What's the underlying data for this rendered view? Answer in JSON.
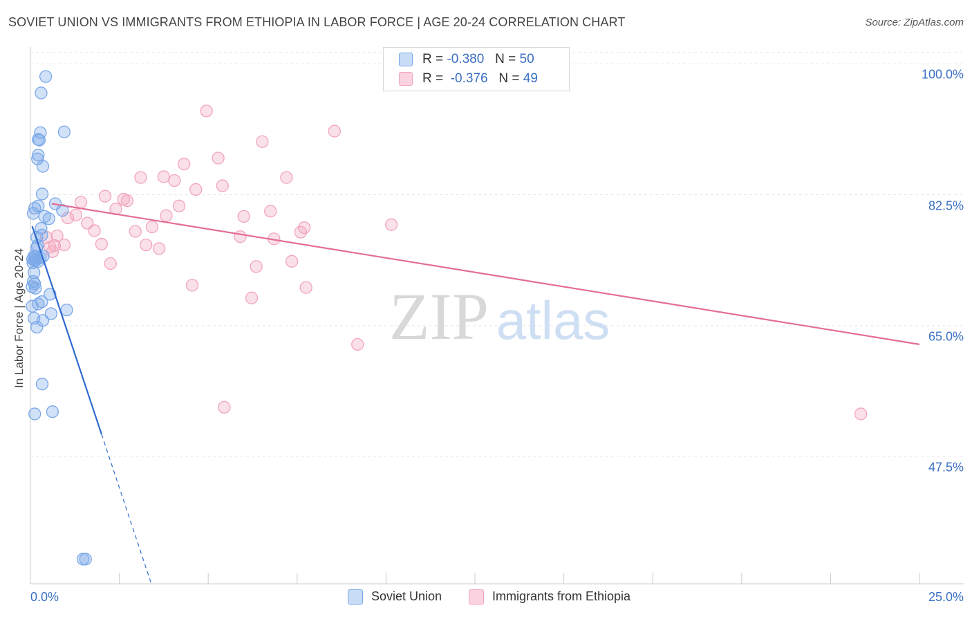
{
  "title": "SOVIET UNION VS IMMIGRANTS FROM ETHIOPIA IN LABOR FORCE | AGE 20-24 CORRELATION CHART",
  "source": "Source: ZipAtlas.com",
  "watermark": {
    "zip": "ZIP",
    "atlas": "atlas"
  },
  "legend": {
    "r_label": "R =",
    "n_label": "N =",
    "rows": [
      {
        "name": "Soviet Union",
        "r": "-0.380",
        "n": "50",
        "color": "#7aa8e8"
      },
      {
        "name": "Immigrants from Ethiopia",
        "r": "-0.376",
        "n": "49",
        "color": "#f2a5bd"
      }
    ]
  },
  "chart_data": {
    "type": "scatter",
    "title": "SOVIET UNION VS IMMIGRANTS FROM ETHIOPIA IN LABOR FORCE | AGE 20-24 CORRELATION CHART",
    "xlabel": "",
    "ylabel": "In Labor Force | Age 20-24",
    "xlim": [
      0,
      25
    ],
    "ylim": [
      30.5,
      101.5
    ],
    "x_tick_labels": [
      "0.0%",
      "25.0%"
    ],
    "y_ticks": [
      47.5,
      65.0,
      82.5,
      100.0
    ],
    "y_tick_labels": [
      "47.5%",
      "65.0%",
      "82.5%",
      "100.0%"
    ],
    "grid": true,
    "series": [
      {
        "name": "Soviet Union",
        "color": "#7aa8e8",
        "line_color": "#2f6ad0",
        "trend": {
          "x_start": 0.05,
          "y_start": 78.3,
          "x_solid_end": 2.0,
          "y_solid_end": 50.5,
          "x_dash_end": 3.4,
          "y_dash_end": 30.5
        },
        "points": [
          [
            0.43,
            98.3
          ],
          [
            0.3,
            96.1
          ],
          [
            0.95,
            90.9
          ],
          [
            0.28,
            90.8
          ],
          [
            0.22,
            89.9
          ],
          [
            0.25,
            89.8
          ],
          [
            0.22,
            87.8
          ],
          [
            0.2,
            87.3
          ],
          [
            0.35,
            86.3
          ],
          [
            0.33,
            82.6
          ],
          [
            0.7,
            81.3
          ],
          [
            0.22,
            81.0
          ],
          [
            0.12,
            80.7
          ],
          [
            0.9,
            80.4
          ],
          [
            0.08,
            80.0
          ],
          [
            0.4,
            79.6
          ],
          [
            0.52,
            79.3
          ],
          [
            0.3,
            78.0
          ],
          [
            0.32,
            77.1
          ],
          [
            0.2,
            75.7
          ],
          [
            0.18,
            75.4
          ],
          [
            0.1,
            74.3
          ],
          [
            0.14,
            74.2
          ],
          [
            0.36,
            74.3
          ],
          [
            0.28,
            74.1
          ],
          [
            0.06,
            73.9
          ],
          [
            0.16,
            73.8
          ],
          [
            0.07,
            73.4
          ],
          [
            0.22,
            73.6
          ],
          [
            0.12,
            73.7
          ],
          [
            0.1,
            72.1
          ],
          [
            0.08,
            70.9
          ],
          [
            0.12,
            70.6
          ],
          [
            0.05,
            70.2
          ],
          [
            0.14,
            70.0
          ],
          [
            0.55,
            69.2
          ],
          [
            0.22,
            67.9
          ],
          [
            0.32,
            68.2
          ],
          [
            0.05,
            67.6
          ],
          [
            1.02,
            67.1
          ],
          [
            0.58,
            66.6
          ],
          [
            0.1,
            66.0
          ],
          [
            0.35,
            65.7
          ],
          [
            0.18,
            64.8
          ],
          [
            0.33,
            57.2
          ],
          [
            0.12,
            53.2
          ],
          [
            0.62,
            53.5
          ],
          [
            1.48,
            33.8
          ],
          [
            1.55,
            33.8
          ],
          [
            0.18,
            76.8
          ]
        ]
      },
      {
        "name": "Immigrants from Ethiopia",
        "color": "#f2a5bd",
        "line_color": "#e36d97",
        "trend": {
          "x_start": 0.6,
          "y_start": 81.3,
          "x_end": 25.0,
          "y_end": 62.5
        },
        "points": [
          [
            4.95,
            93.7
          ],
          [
            8.55,
            91.0
          ],
          [
            6.52,
            89.6
          ],
          [
            5.28,
            87.4
          ],
          [
            4.32,
            86.6
          ],
          [
            3.1,
            84.8
          ],
          [
            3.75,
            84.9
          ],
          [
            4.05,
            84.4
          ],
          [
            7.2,
            84.8
          ],
          [
            4.65,
            83.2
          ],
          [
            5.4,
            83.7
          ],
          [
            2.1,
            82.3
          ],
          [
            2.62,
            81.9
          ],
          [
            2.72,
            81.7
          ],
          [
            1.42,
            81.5
          ],
          [
            2.4,
            80.6
          ],
          [
            4.18,
            81.0
          ],
          [
            6.75,
            80.3
          ],
          [
            3.82,
            79.7
          ],
          [
            1.28,
            79.8
          ],
          [
            1.05,
            79.4
          ],
          [
            6.0,
            79.6
          ],
          [
            1.6,
            78.7
          ],
          [
            10.15,
            78.5
          ],
          [
            3.42,
            78.2
          ],
          [
            7.7,
            78.1
          ],
          [
            1.8,
            77.7
          ],
          [
            2.95,
            77.6
          ],
          [
            7.6,
            77.5
          ],
          [
            0.75,
            77.0
          ],
          [
            0.45,
            76.8
          ],
          [
            5.9,
            76.9
          ],
          [
            6.85,
            76.6
          ],
          [
            2.0,
            75.9
          ],
          [
            0.95,
            75.8
          ],
          [
            0.68,
            75.7
          ],
          [
            3.25,
            75.8
          ],
          [
            3.62,
            75.3
          ],
          [
            0.55,
            75.5
          ],
          [
            2.25,
            73.3
          ],
          [
            7.35,
            73.6
          ],
          [
            6.35,
            72.9
          ],
          [
            4.55,
            70.4
          ],
          [
            7.75,
            70.1
          ],
          [
            6.22,
            68.7
          ],
          [
            9.2,
            62.5
          ],
          [
            5.45,
            54.1
          ],
          [
            23.35,
            53.2
          ],
          [
            0.62,
            74.9
          ]
        ]
      }
    ]
  },
  "bottom_legend": [
    {
      "label": "Soviet Union",
      "color": "#7aa8e8"
    },
    {
      "label": "Immigrants from Ethiopia",
      "color": "#f2a5bd"
    }
  ]
}
